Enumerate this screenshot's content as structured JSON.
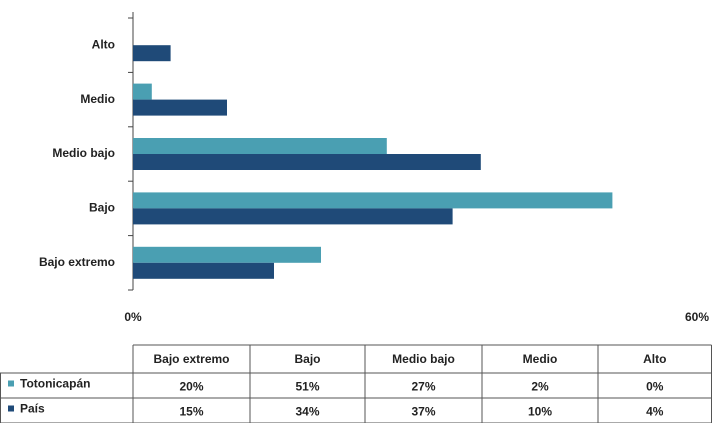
{
  "chart_data": {
    "type": "bar",
    "orientation": "horizontal",
    "categories": [
      "Bajo extremo",
      "Bajo",
      "Medio bajo",
      "Medio",
      "Alto"
    ],
    "series": [
      {
        "name": "Totonicapán",
        "color": "#4a9fb2",
        "values": [
          20,
          51,
          27,
          2,
          0
        ],
        "value_labels": [
          "20%",
          "51%",
          "27%",
          "2%",
          "0%"
        ]
      },
      {
        "name": "País",
        "color": "#1f4a78",
        "values": [
          15,
          34,
          37,
          10,
          4
        ],
        "value_labels": [
          "15%",
          "34%",
          "37%",
          "10%",
          "4%"
        ]
      }
    ],
    "xlim": [
      0,
      60
    ],
    "xticks": [
      {
        "value": 0,
        "label": "0%"
      },
      {
        "value": 60,
        "label": "60%"
      }
    ]
  }
}
